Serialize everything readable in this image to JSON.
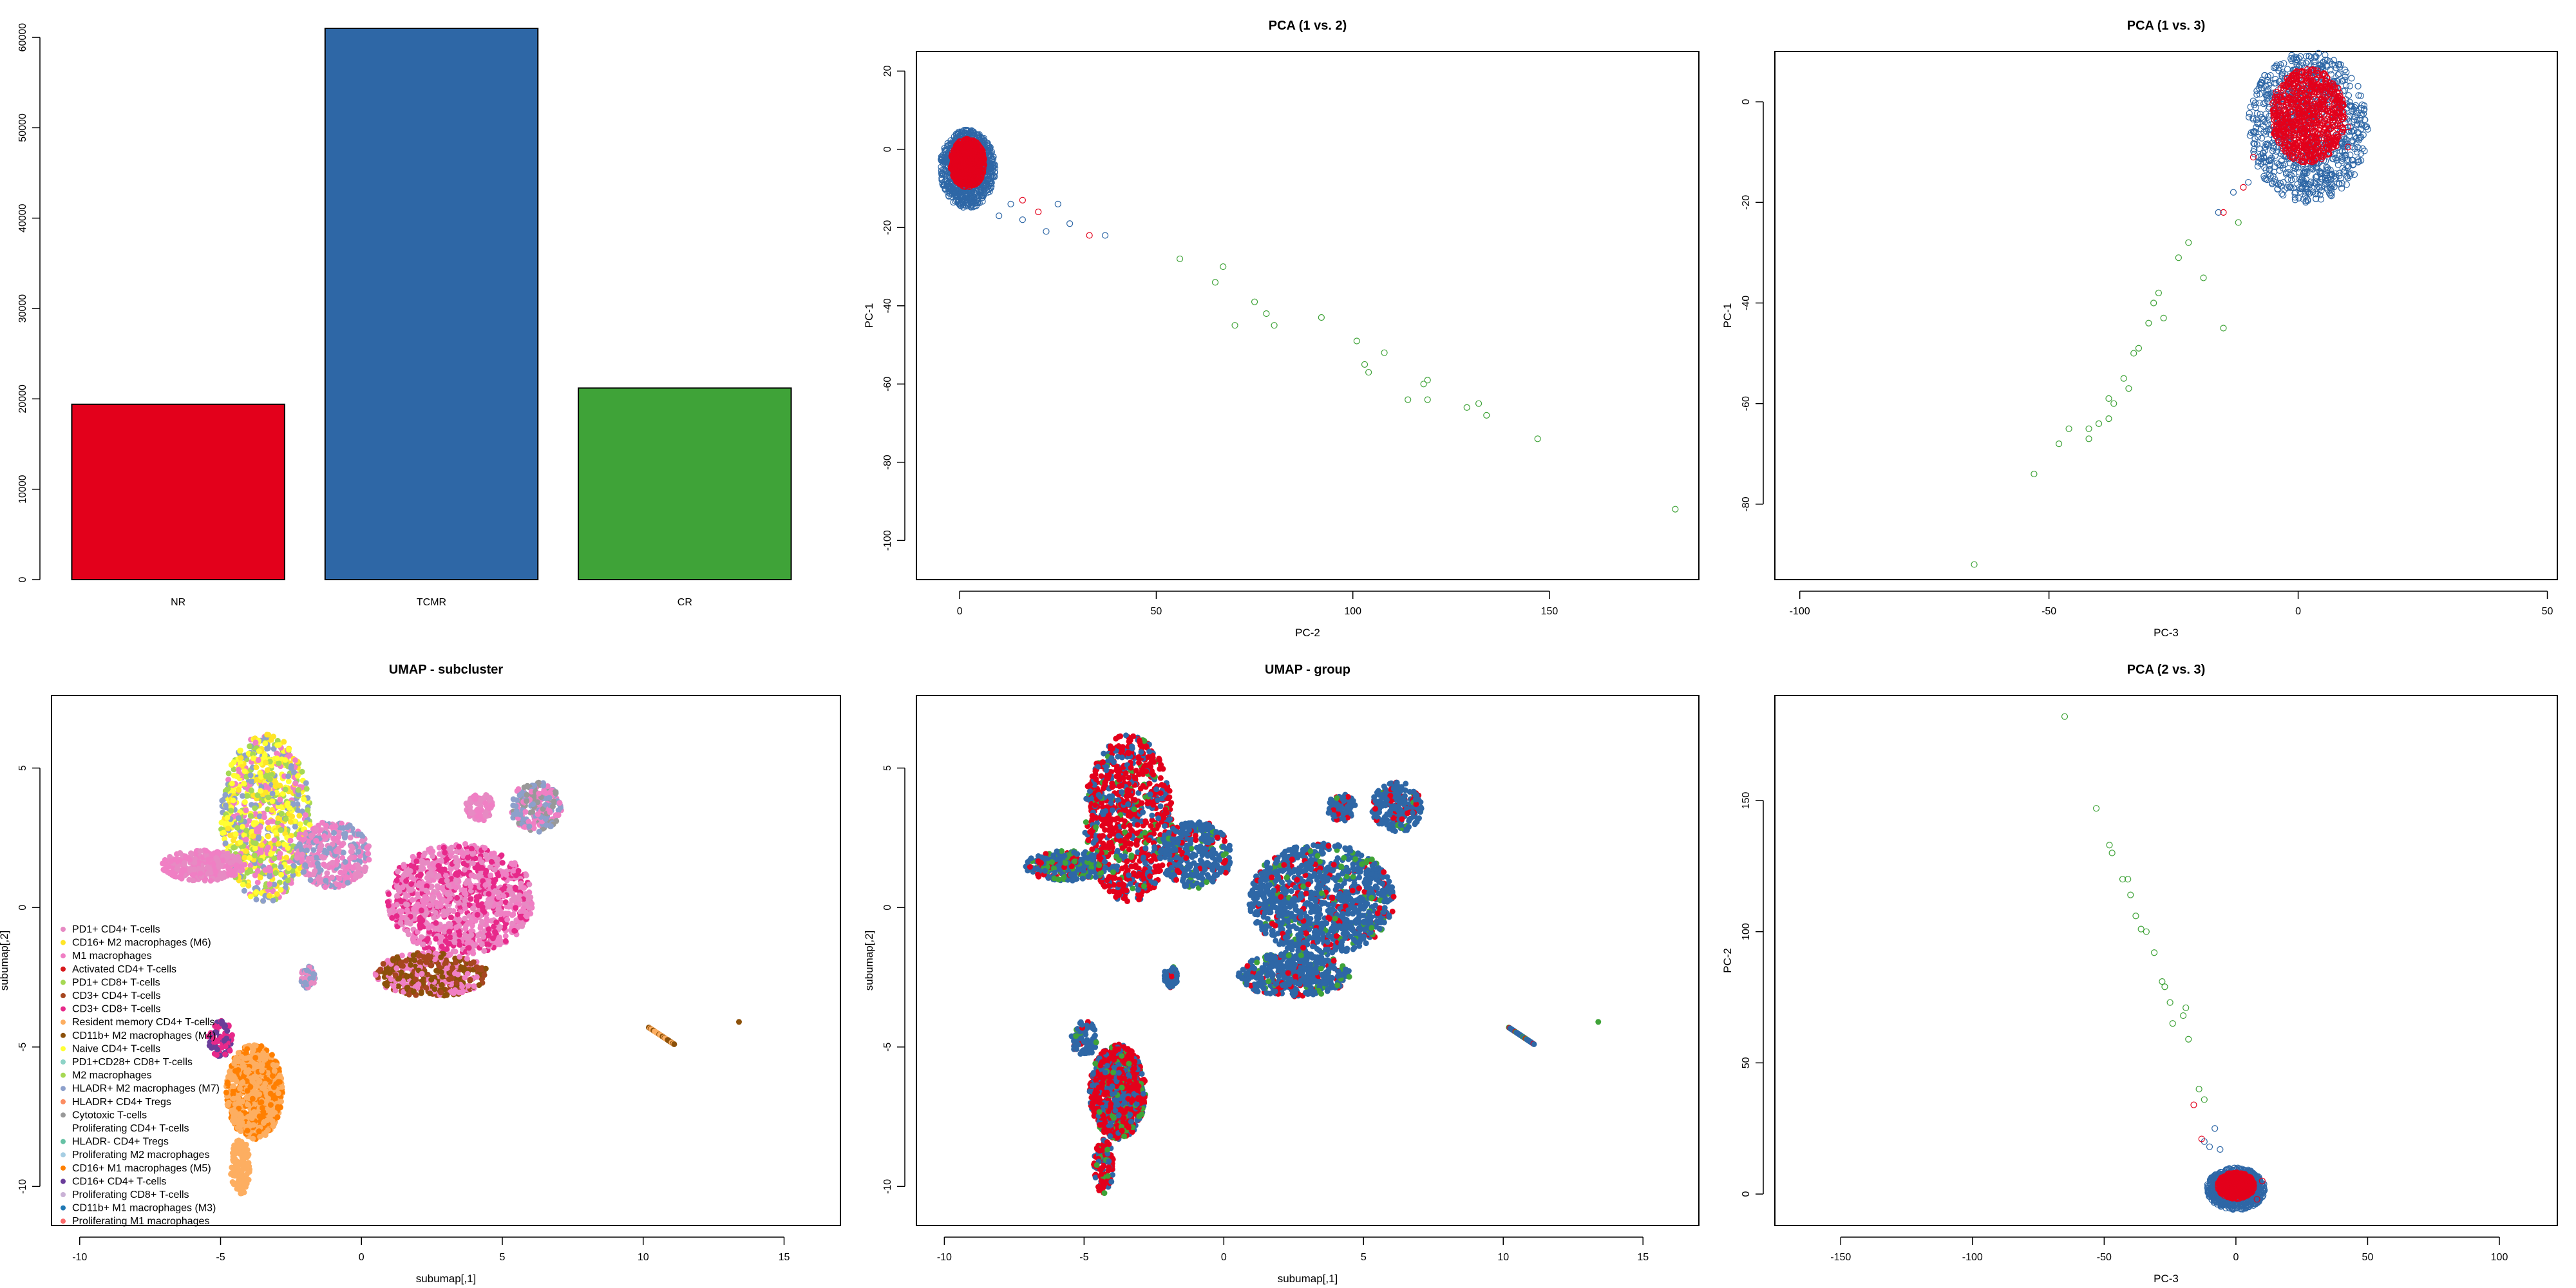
{
  "colors": {
    "NR": "#E3001B",
    "TCMR": "#2E67A6",
    "CR": "#3FA338",
    "axis": "#000000"
  },
  "chart_data": [
    {
      "id": "bar",
      "type": "bar",
      "title": "",
      "categories": [
        "NR",
        "TCMR",
        "CR"
      ],
      "values": [
        19400,
        61000,
        21200
      ],
      "ylim": [
        0,
        62000
      ],
      "yticks": [
        0,
        10000,
        20000,
        30000,
        40000,
        50000,
        60000
      ],
      "bar_colors": [
        "#E3001B",
        "#2E67A6",
        "#3FA338"
      ]
    },
    {
      "id": "pca12",
      "type": "scatter",
      "title": "PCA (1 vs. 2)",
      "xlabel": "PC-2",
      "ylabel": "PC-1",
      "xlim": [
        -11,
        188
      ],
      "ylim": [
        -110,
        25
      ],
      "xticks": [
        0,
        50,
        100,
        150
      ],
      "yticks": [
        20,
        0,
        -20,
        -40,
        -60,
        -80,
        -100
      ],
      "cluster": {
        "cx": 2,
        "cy": -5,
        "rx": 7,
        "ry": 10
      },
      "outliers_green": [
        [
          56,
          -28
        ],
        [
          65,
          -34
        ],
        [
          67,
          -30
        ],
        [
          70,
          -45
        ],
        [
          75,
          -39
        ],
        [
          78,
          -42
        ],
        [
          80,
          -45
        ],
        [
          92,
          -43
        ],
        [
          101,
          -49
        ],
        [
          103,
          -55
        ],
        [
          104,
          -57
        ],
        [
          108,
          -52
        ],
        [
          114,
          -64
        ],
        [
          118,
          -60
        ],
        [
          119,
          -59
        ],
        [
          119,
          -64
        ],
        [
          129,
          -66
        ],
        [
          132,
          -65
        ],
        [
          134,
          -68
        ],
        [
          147,
          -74
        ],
        [
          182,
          -92
        ]
      ],
      "outliers_blue": [
        [
          10,
          -17
        ],
        [
          13,
          -14
        ],
        [
          16,
          -18
        ],
        [
          22,
          -21
        ],
        [
          25,
          -14
        ],
        [
          28,
          -19
        ],
        [
          37,
          -22
        ]
      ],
      "outliers_red": [
        [
          16,
          -13
        ],
        [
          20,
          -16
        ],
        [
          33,
          -22
        ]
      ]
    },
    {
      "id": "pca13",
      "type": "scatter",
      "title": "PCA (1 vs. 3)",
      "xlabel": "PC-3",
      "ylabel": "PC-1",
      "xlim": [
        -105,
        52
      ],
      "ylim": [
        -95,
        10
      ],
      "xticks": [
        -100,
        -50,
        0,
        50
      ],
      "yticks": [
        0,
        -20,
        -40,
        -60,
        -80
      ],
      "cluster": {
        "cx": 2,
        "cy": -5,
        "rx": 12,
        "ry": 15
      },
      "outliers_green": [
        [
          -65,
          -92
        ],
        [
          -53,
          -74
        ],
        [
          -48,
          -68
        ],
        [
          -46,
          -65
        ],
        [
          -42,
          -67
        ],
        [
          -42,
          -65
        ],
        [
          -40,
          -64
        ],
        [
          -38,
          -63
        ],
        [
          -38,
          -59
        ],
        [
          -37,
          -60
        ],
        [
          -35,
          -55
        ],
        [
          -34,
          -57
        ],
        [
          -33,
          -50
        ],
        [
          -32,
          -49
        ],
        [
          -30,
          -44
        ],
        [
          -29,
          -40
        ],
        [
          -28,
          -38
        ],
        [
          -27,
          -43
        ],
        [
          -24,
          -31
        ],
        [
          -22,
          -28
        ],
        [
          -19,
          -35
        ],
        [
          -15,
          -45
        ],
        [
          -12,
          -24
        ]
      ],
      "outliers_blue": [
        [
          -16,
          -22
        ],
        [
          -13,
          -18
        ],
        [
          -10,
          -16
        ],
        [
          -8,
          -12
        ]
      ],
      "outliers_red": [
        [
          -15,
          -22
        ],
        [
          -11,
          -17
        ],
        [
          -9,
          -11
        ],
        [
          10,
          -5
        ],
        [
          10,
          -9
        ]
      ]
    },
    {
      "id": "umap_sub",
      "type": "scatter",
      "title": "UMAP - subcluster",
      "xlabel": "subumap[,1]",
      "ylabel": "subumap[,2]",
      "xlim": [
        -11,
        17
      ],
      "ylim": [
        -11.4,
        7.6
      ],
      "xticks": [
        -10,
        -5,
        0,
        5,
        10,
        15
      ],
      "yticks": [
        5,
        0,
        -5,
        -10
      ],
      "legend_position": "bottom-left",
      "legend": [
        {
          "label": "PD1+ CD4+ T-cells",
          "color": "#E78AC3"
        },
        {
          "label": "CD16+ M2 macrophages (M6)",
          "color": "#FFE528"
        },
        {
          "label": "M1 macrophages",
          "color": "#F07FC4"
        },
        {
          "label": "Activated CD4+ T-cells",
          "color": "#D7191C"
        },
        {
          "label": "PD1+ CD8+ T-cells",
          "color": "#A6D854"
        },
        {
          "label": "CD3+ CD4+ T-cells",
          "color": "#A6461F"
        },
        {
          "label": "CD3+ CD8+ T-cells",
          "color": "#E7298A"
        },
        {
          "label": "Resident memory CD4+ T-cells",
          "color": "#FDAE61"
        },
        {
          "label": "CD11b+ M2 macrophages (M4)",
          "color": "#8C510A"
        },
        {
          "label": "Naive CD4+ T-cells",
          "color": "#FFFF33"
        },
        {
          "label": "PD1+CD28+ CD8+ T-cells",
          "color": "#8DD3C7"
        },
        {
          "label": "M2 macrophages",
          "color": "#A6D854"
        },
        {
          "label": "HLADR+ M2 macrophages (M7)",
          "color": "#8DA0CB"
        },
        {
          "label": "HLADR+ CD4+ Tregs",
          "color": "#FC8D62"
        },
        {
          "label": "Cytotoxic T-cells",
          "color": "#999999"
        },
        {
          "label": "Proliferating CD4+ T-cells",
          "color": "#FFFFFF"
        },
        {
          "label": "HLADR- CD4+ Tregs",
          "color": "#66C2A5"
        },
        {
          "label": "Proliferating M2 macrophages",
          "color": "#A6CEE3"
        },
        {
          "label": "CD16+ M1 macrophages (M5)",
          "color": "#FF7F00"
        },
        {
          "label": "CD16+ CD4+ T-cells",
          "color": "#6A3D9A"
        },
        {
          "label": "Proliferating CD8+ T-cells",
          "color": "#CAB2D6"
        },
        {
          "label": "CD11b+ M1 macrophages (M3)",
          "color": "#1F78B4"
        },
        {
          "label": "Proliferating M1 macrophages",
          "color": "#FB6A6A"
        }
      ]
    },
    {
      "id": "umap_group",
      "type": "scatter",
      "title": "UMAP - group",
      "xlabel": "subumap[,1]",
      "ylabel": "subumap[,2]",
      "xlim": [
        -11,
        17
      ],
      "ylim": [
        -11.4,
        7.6
      ],
      "xticks": [
        -10,
        -5,
        0,
        5,
        10,
        15
      ],
      "yticks": [
        5,
        0,
        -5,
        -10
      ],
      "series": [
        {
          "name": "TCMR",
          "color": "#2E67A6"
        },
        {
          "name": "NR",
          "color": "#E3001B"
        },
        {
          "name": "CR",
          "color": "#3FA338"
        }
      ]
    },
    {
      "id": "pca23",
      "type": "scatter",
      "title": "PCA (2 vs. 3)",
      "xlabel": "PC-3",
      "ylabel": "PC-2",
      "xlim": [
        -175,
        122
      ],
      "ylim": [
        -12,
        190
      ],
      "xticks": [
        -150,
        -100,
        -50,
        0,
        50,
        100
      ],
      "yticks": [
        0,
        50,
        100,
        150
      ],
      "cluster": {
        "cx": 0,
        "cy": 2,
        "rx": 11,
        "ry": 8
      },
      "outliers_green": [
        [
          -65,
          182
        ],
        [
          -53,
          147
        ],
        [
          -48,
          133
        ],
        [
          -47,
          130
        ],
        [
          -43,
          120
        ],
        [
          -41,
          120
        ],
        [
          -40,
          114
        ],
        [
          -38,
          106
        ],
        [
          -36,
          101
        ],
        [
          -34,
          100
        ],
        [
          -31,
          92
        ],
        [
          -28,
          81
        ],
        [
          -27,
          79
        ],
        [
          -25,
          73
        ],
        [
          -24,
          65
        ],
        [
          -20,
          68
        ],
        [
          -19,
          71
        ],
        [
          -18,
          59
        ],
        [
          -14,
          40
        ],
        [
          -12,
          36
        ]
      ],
      "outliers_blue": [
        [
          -12,
          20
        ],
        [
          -10,
          18
        ],
        [
          -8,
          25
        ],
        [
          -6,
          17
        ]
      ],
      "outliers_red": [
        [
          -16,
          34
        ],
        [
          -13,
          21
        ],
        [
          10,
          5
        ],
        [
          8,
          -2
        ]
      ]
    }
  ]
}
